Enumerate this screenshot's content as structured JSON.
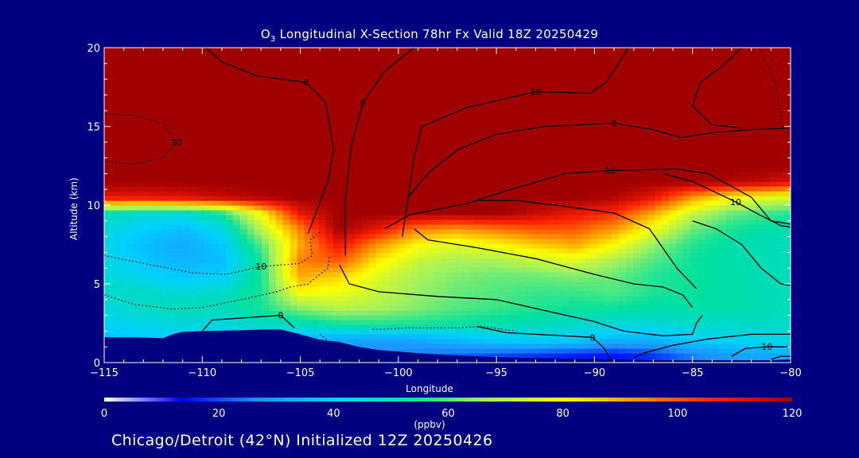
{
  "chart_data": {
    "type": "heatmap",
    "title": "O3 Longitudinal X-Section 78hr  Fx Valid 18Z 20250429",
    "title_prefix": "O",
    "title_subscript": "3",
    "title_rest": " Longitudinal X-Section 78hr  Fx Valid 18Z 20250429",
    "xlabel": "Longitude",
    "ylabel": "Altitude (km)",
    "xlim": [
      -115,
      -80
    ],
    "ylim": [
      0,
      20
    ],
    "x_ticks": [
      -115,
      -110,
      -105,
      -100,
      -95,
      -90,
      -85,
      -80
    ],
    "x_tick_labels": [
      "−115",
      "−110",
      "−105",
      "−100",
      "−95",
      "−90",
      "−85",
      "−80"
    ],
    "y_ticks": [
      0,
      5,
      10,
      15,
      20
    ],
    "y_tick_labels": [
      "0",
      "5",
      "10",
      "15",
      "20"
    ],
    "colorbar": {
      "label": "(ppbv)",
      "range": [
        0,
        120
      ],
      "ticks": [
        0,
        20,
        40,
        60,
        80,
        100,
        120
      ],
      "tick_labels": [
        "0",
        "20",
        "40",
        "60",
        "80",
        "100",
        "120"
      ],
      "colors": [
        "#ffffff",
        "#0000ff",
        "#1e90ff",
        "#00d0ff",
        "#00e0a0",
        "#a0f060",
        "#ffff00",
        "#ff9000",
        "#ff2000",
        "#a00000"
      ]
    },
    "ozone_field_ppbv": {
      "x": [
        -115,
        -113,
        -111,
        -109,
        -107,
        -105,
        -103,
        -101,
        -99,
        -97,
        -95,
        -93,
        -91,
        -89,
        -87,
        -85,
        -83,
        -81,
        -80
      ],
      "y": [
        0.5,
        1.5,
        2.5,
        3.5,
        4.5,
        5.5,
        6.5,
        7.5,
        8.5,
        9.5,
        10.5,
        11.5,
        12.5,
        14,
        17,
        20
      ],
      "values": [
        [
          30,
          30,
          30,
          30,
          30,
          30,
          28,
          26,
          24,
          22,
          20,
          18,
          16,
          15,
          18,
          25,
          30,
          32,
          32
        ],
        [
          36,
          38,
          40,
          40,
          40,
          35,
          32,
          30,
          32,
          36,
          40,
          42,
          40,
          35,
          35,
          40,
          42,
          44,
          45
        ],
        [
          42,
          44,
          45,
          45,
          48,
          50,
          55,
          56,
          55,
          54,
          52,
          50,
          48,
          46,
          46,
          48,
          48,
          48,
          48
        ],
        [
          45,
          48,
          50,
          50,
          55,
          65,
          70,
          68,
          64,
          60,
          58,
          56,
          54,
          54,
          52,
          52,
          52,
          50,
          50
        ],
        [
          48,
          48,
          46,
          48,
          55,
          80,
          78,
          72,
          66,
          62,
          60,
          58,
          58,
          60,
          56,
          54,
          52,
          50,
          50
        ],
        [
          46,
          42,
          38,
          40,
          55,
          90,
          85,
          75,
          68,
          64,
          62,
          62,
          64,
          62,
          56,
          54,
          52,
          50,
          50
        ],
        [
          44,
          38,
          34,
          36,
          55,
          95,
          100,
          82,
          72,
          68,
          68,
          72,
          76,
          68,
          60,
          54,
          52,
          50,
          50
        ],
        [
          44,
          36,
          32,
          38,
          60,
          90,
          110,
          92,
          80,
          76,
          80,
          86,
          90,
          80,
          66,
          56,
          52,
          50,
          50
        ],
        [
          46,
          40,
          36,
          44,
          70,
          95,
          120,
          110,
          95,
          92,
          96,
          100,
          100,
          92,
          78,
          62,
          55,
          52,
          52
        ],
        [
          50,
          46,
          46,
          55,
          80,
          110,
          120,
          120,
          120,
          120,
          120,
          115,
          110,
          105,
          90,
          72,
          62,
          58,
          56
        ],
        [
          110,
          110,
          112,
          115,
          118,
          120,
          120,
          120,
          120,
          120,
          120,
          120,
          120,
          118,
          110,
          92,
          80,
          76,
          75
        ],
        [
          120,
          120,
          120,
          120,
          120,
          120,
          120,
          120,
          120,
          120,
          120,
          120,
          120,
          120,
          120,
          120,
          118,
          115,
          112
        ],
        [
          120,
          120,
          120,
          120,
          120,
          120,
          120,
          120,
          120,
          120,
          120,
          120,
          120,
          120,
          120,
          120,
          120,
          120,
          120
        ],
        [
          120,
          120,
          120,
          120,
          120,
          120,
          120,
          120,
          120,
          120,
          120,
          120,
          120,
          120,
          120,
          120,
          120,
          120,
          120
        ],
        [
          120,
          120,
          120,
          120,
          120,
          120,
          120,
          120,
          120,
          120,
          120,
          120,
          120,
          120,
          120,
          120,
          120,
          120,
          120
        ],
        [
          120,
          120,
          120,
          120,
          120,
          120,
          120,
          120,
          120,
          120,
          120,
          120,
          120,
          120,
          120,
          120,
          120,
          120,
          120
        ]
      ]
    },
    "terrain_km": {
      "x": [
        -115,
        -113.5,
        -112,
        -111.5,
        -111,
        -110,
        -108,
        -107,
        -106,
        -105,
        -104,
        -103,
        -102,
        -101,
        -99,
        -97,
        -95,
        -93,
        -91,
        -89,
        -87,
        -85,
        -83,
        -81,
        -80
      ],
      "y": [
        1.6,
        1.6,
        1.55,
        1.8,
        1.95,
        2.0,
        2.05,
        2.1,
        2.1,
        1.8,
        1.45,
        1.3,
        1.0,
        0.8,
        0.6,
        0.45,
        0.35,
        0.3,
        0.25,
        0.2,
        0.15,
        0.15,
        0.15,
        0.15,
        0.2
      ]
    },
    "contour_labels": [
      "10",
      "0",
      "0",
      "10",
      "0",
      "0",
      "10",
      "0",
      "10",
      "10",
      "10"
    ],
    "contours": [
      {
        "style": "solid",
        "label_index": 1,
        "points": [
          [
            -104.6,
            8.2
          ],
          [
            -103.6,
            11.5
          ],
          [
            -103.3,
            13.5
          ],
          [
            -103.7,
            16.5
          ],
          [
            -104.7,
            17.8
          ],
          [
            -107.2,
            18.2
          ],
          [
            -109.0,
            19.1
          ],
          [
            -109.8,
            20.0
          ]
        ]
      },
      {
        "style": "solid",
        "label_index": 2,
        "points": [
          [
            -102.7,
            6.8
          ],
          [
            -102.7,
            10.5
          ],
          [
            -102.4,
            13.8
          ],
          [
            -101.8,
            16.5
          ],
          [
            -100.7,
            18.5
          ],
          [
            -99.2,
            20.0
          ]
        ]
      },
      {
        "style": "solid",
        "label_index": 0,
        "points": [
          [
            -99.8,
            8.0
          ],
          [
            -99.5,
            10.5
          ],
          [
            -99.2,
            13.0
          ],
          [
            -98.8,
            15.0
          ],
          [
            -96.5,
            16.2
          ],
          [
            -93.0,
            17.2
          ],
          [
            -90.2,
            17.1
          ],
          [
            -89.4,
            17.8
          ],
          [
            -88.5,
            19.5
          ],
          [
            -88.3,
            20.0
          ]
        ]
      },
      {
        "style": "solid",
        "label_index": 3,
        "points": [
          [
            -100.7,
            8.5
          ],
          [
            -99.4,
            9.4
          ],
          [
            -96.5,
            10.1
          ],
          [
            -94.8,
            10.8
          ],
          [
            -91.5,
            12.0
          ],
          [
            -89.2,
            12.2
          ],
          [
            -85.8,
            12.3
          ],
          [
            -84.2,
            12.0
          ],
          [
            -82.0,
            10.5
          ],
          [
            -81.0,
            9.0
          ],
          [
            -80.0,
            8.8
          ]
        ]
      },
      {
        "style": "solid",
        "label_index": 4,
        "points": [
          [
            -99.5,
            10.5
          ],
          [
            -98.5,
            12.0
          ],
          [
            -97.0,
            13.5
          ],
          [
            -95.0,
            14.5
          ],
          [
            -92.5,
            15.0
          ],
          [
            -89.0,
            15.2
          ],
          [
            -87.0,
            14.8
          ],
          [
            -85.6,
            14.3
          ],
          [
            -84.0,
            14.6
          ],
          [
            -82.0,
            14.8
          ],
          [
            -80.0,
            14.9
          ]
        ]
      },
      {
        "style": "solid",
        "label_index": -1,
        "points": [
          [
            -82.5,
            20.0
          ],
          [
            -83.5,
            18.8
          ],
          [
            -84.6,
            17.8
          ],
          [
            -85.0,
            16.3
          ],
          [
            -84.0,
            15.1
          ],
          [
            -82.5,
            14.9
          ]
        ]
      },
      {
        "style": "solid",
        "label_index": -1,
        "points": [
          [
            -103.0,
            6.2
          ],
          [
            -102.5,
            5.0
          ],
          [
            -101.0,
            4.5
          ],
          [
            -98.0,
            4.2
          ],
          [
            -95.0,
            4.0
          ],
          [
            -92.5,
            3.3
          ],
          [
            -90.0,
            2.6
          ],
          [
            -88.5,
            2.0
          ],
          [
            -86.5,
            1.7
          ],
          [
            -85.0,
            1.8
          ],
          [
            -84.8,
            2.5
          ],
          [
            -84.5,
            3.0
          ]
        ]
      },
      {
        "style": "solid",
        "label_index": -1,
        "points": [
          [
            -99.2,
            8.5
          ],
          [
            -98.5,
            7.8
          ],
          [
            -96.0,
            7.3
          ],
          [
            -93.0,
            6.6
          ],
          [
            -90.0,
            5.6
          ],
          [
            -88.0,
            5.0
          ],
          [
            -86.5,
            4.8
          ],
          [
            -85.5,
            4.3
          ],
          [
            -85.0,
            3.5
          ]
        ]
      },
      {
        "style": "solid",
        "label_index": 6,
        "points": [
          [
            -86.5,
            12.0
          ],
          [
            -85.0,
            11.5
          ],
          [
            -83.8,
            10.8
          ],
          [
            -82.8,
            10.2
          ],
          [
            -81.6,
            9.4
          ],
          [
            -80.5,
            8.7
          ],
          [
            -80.0,
            8.6
          ]
        ]
      },
      {
        "style": "solid",
        "label_index": -1,
        "points": [
          [
            -96.0,
            10.3
          ],
          [
            -94.0,
            10.3
          ],
          [
            -92.0,
            10.0
          ],
          [
            -89.0,
            9.5
          ],
          [
            -87.2,
            8.5
          ],
          [
            -85.8,
            6.0
          ],
          [
            -84.8,
            4.7
          ]
        ]
      },
      {
        "style": "solid",
        "label_index": -1,
        "points": [
          [
            -85.0,
            9.0
          ],
          [
            -83.8,
            8.5
          ],
          [
            -82.5,
            7.5
          ],
          [
            -81.5,
            6.0
          ],
          [
            -80.5,
            5.0
          ],
          [
            -80.0,
            4.9
          ]
        ]
      },
      {
        "style": "solid",
        "label_index": 5,
        "points": [
          [
            -110.0,
            2.0
          ],
          [
            -109.5,
            2.7
          ],
          [
            -106.0,
            3.0
          ],
          [
            -105.3,
            2.2
          ]
        ]
      },
      {
        "style": "solid",
        "label_index": 7,
        "points": [
          [
            -89.2,
            0.2
          ],
          [
            -89.5,
            0.9
          ],
          [
            -90.1,
            1.6
          ],
          [
            -94.5,
            1.9
          ],
          [
            -96.0,
            2.3
          ]
        ]
      },
      {
        "style": "solid",
        "label_index": 8,
        "points": [
          [
            -83.0,
            0.4
          ],
          [
            -82.3,
            0.9
          ],
          [
            -81.2,
            1.0
          ],
          [
            -80.0,
            1.0
          ]
        ]
      },
      {
        "style": "solid",
        "label_index": -1,
        "points": [
          [
            -88.0,
            0.3
          ],
          [
            -87.5,
            0.6
          ],
          [
            -86.0,
            1.1
          ],
          [
            -84.2,
            1.5
          ],
          [
            -82.0,
            1.8
          ],
          [
            -80.0,
            1.8
          ]
        ]
      },
      {
        "style": "solid",
        "label_index": -1,
        "points": [
          [
            -81.0,
            0.2
          ],
          [
            -80.5,
            0.4
          ],
          [
            -80.0,
            0.4
          ]
        ]
      },
      {
        "style": "dotted",
        "label_index": 9,
        "points": [
          [
            -115.0,
            6.8
          ],
          [
            -112.6,
            6.2
          ],
          [
            -110.5,
            5.7
          ],
          [
            -108.8,
            5.6
          ],
          [
            -107.0,
            6.1
          ],
          [
            -105.0,
            6.3
          ],
          [
            -104.4,
            6.8
          ],
          [
            -104.5,
            7.8
          ],
          [
            -104.0,
            8.3
          ]
        ]
      },
      {
        "style": "dotted",
        "label_index": -1,
        "points": [
          [
            -115.0,
            4.3
          ],
          [
            -113.5,
            3.7
          ],
          [
            -111.5,
            3.4
          ],
          [
            -110.0,
            3.5
          ],
          [
            -108.0,
            4.0
          ],
          [
            -106.2,
            4.5
          ],
          [
            -105.5,
            4.8
          ],
          [
            -104.6,
            5.0
          ],
          [
            -103.6,
            6.0
          ],
          [
            -103.5,
            6.8
          ]
        ]
      },
      {
        "style": "dotted",
        "label_index": 10,
        "points": [
          [
            -115.0,
            12.8
          ],
          [
            -113.5,
            12.6
          ],
          [
            -112.0,
            13.0
          ],
          [
            -111.3,
            14.0
          ],
          [
            -112.0,
            15.2
          ],
          [
            -113.5,
            15.7
          ],
          [
            -115.0,
            15.8
          ]
        ]
      },
      {
        "style": "dotted",
        "label_index": -1,
        "points": [
          [
            -104.0,
            1.8
          ],
          [
            -103.5,
            1.3
          ],
          [
            -102.7,
            1.1
          ],
          [
            -102.6,
            0.6
          ],
          [
            -102.2,
            0.1
          ]
        ]
      },
      {
        "style": "dotted",
        "label_index": -1,
        "points": [
          [
            -101.3,
            2.1
          ],
          [
            -99.5,
            2.2
          ],
          [
            -97.0,
            2.2
          ],
          [
            -95.8,
            2.3
          ],
          [
            -94.0,
            2.0
          ]
        ]
      },
      {
        "style": "dotted",
        "label_index": -1,
        "points": [
          [
            -81.6,
            20.0
          ],
          [
            -81.1,
            18.7
          ],
          [
            -80.7,
            17.5
          ],
          [
            -80.5,
            15.5
          ],
          [
            -80.3,
            14.5
          ]
        ]
      }
    ]
  },
  "footer": "Chicago/Detroit (42°N) Initialized 12Z 20250426"
}
